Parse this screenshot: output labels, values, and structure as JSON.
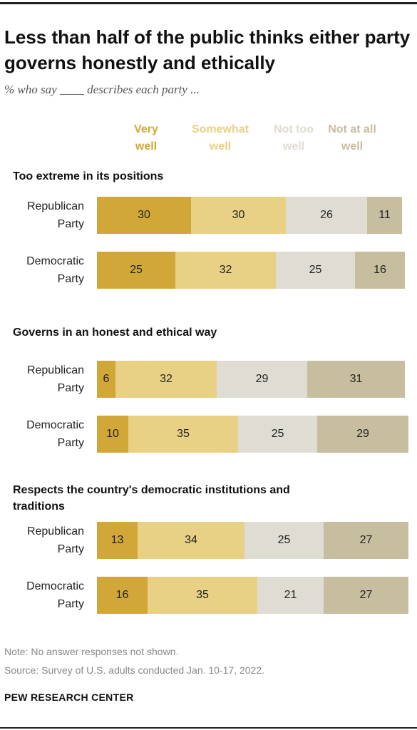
{
  "title": "Less than half of the public thinks either party governs honestly and ethically",
  "subtitle": "% who say ____ describes each party ...",
  "legend": [
    {
      "line1": "Very",
      "line2": "well",
      "color": "#d1a838"
    },
    {
      "line1": "Somewhat",
      "line2": "well",
      "color": "#e8d084"
    },
    {
      "line1": "Not too",
      "line2": "well",
      "color": "#dfdcd3"
    },
    {
      "line1": "Not at all",
      "line2": "well",
      "color": "#c7bd9f"
    }
  ],
  "chart_data": {
    "type": "bar",
    "orientation": "horizontal",
    "stacked": true,
    "scale_max": 100,
    "series_names": [
      "Very well",
      "Somewhat well",
      "Not too well",
      "Not at all well"
    ],
    "colors": [
      "#d1a838",
      "#e8d084",
      "#dfdcd3",
      "#c7bd9f"
    ],
    "groups": [
      {
        "label": "Too extreme in its positions",
        "rows": [
          {
            "label_line1": "Republican",
            "label_line2": "Party",
            "values": [
              30,
              30,
              26,
              11
            ]
          },
          {
            "label_line1": "Democratic",
            "label_line2": "Party",
            "values": [
              25,
              32,
              25,
              16
            ]
          }
        ]
      },
      {
        "label": "Governs in an honest and ethical way",
        "rows": [
          {
            "label_line1": "Republican",
            "label_line2": "Party",
            "values": [
              6,
              32,
              29,
              31
            ]
          },
          {
            "label_line1": "Democratic",
            "label_line2": "Party",
            "values": [
              10,
              35,
              25,
              29
            ]
          }
        ]
      },
      {
        "label": "Respects the country's democratic institutions and traditions",
        "rows": [
          {
            "label_line1": "Republican",
            "label_line2": "Party",
            "values": [
              13,
              34,
              25,
              27
            ]
          },
          {
            "label_line1": "Democratic",
            "label_line2": "Party",
            "values": [
              16,
              35,
              21,
              27
            ]
          }
        ]
      }
    ]
  },
  "note": "Note: No answer responses not shown.",
  "source": "Source: Survey of U.S. adults conducted Jan. 10-17, 2022.",
  "brand": "PEW RESEARCH CENTER"
}
